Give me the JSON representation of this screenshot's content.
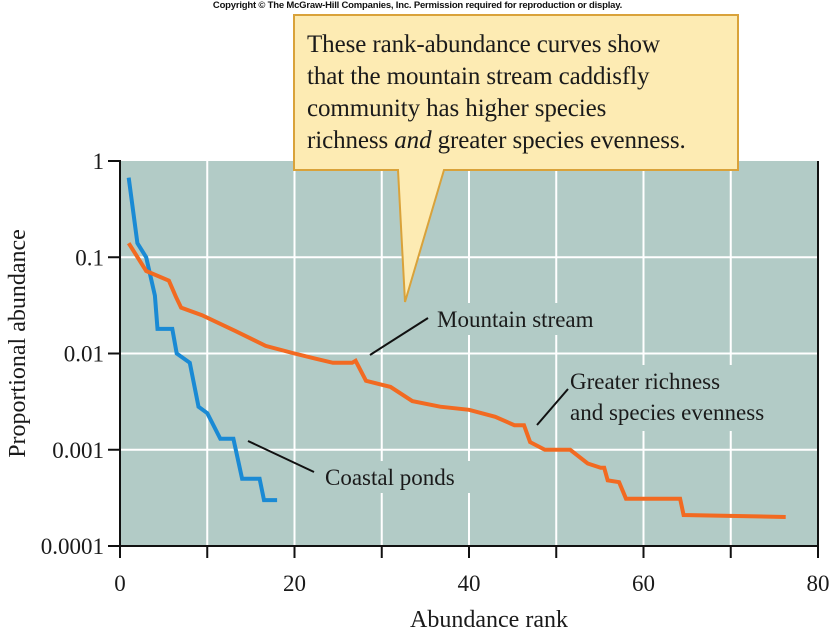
{
  "copyright": "Copyright © The McGraw-Hill Companies, Inc. Permission required for reproduction or display.",
  "callout": {
    "lines": [
      "These rank-abundance curves show",
      "that the mountain stream caddisfly",
      "community has higher species"
    ],
    "last_line_pre": "richness ",
    "last_line_em": "and",
    "last_line_post": " greater species evenness."
  },
  "colors": {
    "plot_background": "#b2cbc6",
    "grid": "#ffffff",
    "mountain_stream": "#f26a21",
    "coastal_ponds": "#1a8ad4",
    "callout_fill": "#fdebb3",
    "callout_border": "#d9a23a"
  },
  "chart_data": {
    "type": "line",
    "title": "",
    "xlabel": "Abundance rank",
    "ylabel": "Proportional abundance",
    "xlim": [
      0,
      80
    ],
    "ylim": [
      0.0001,
      1
    ],
    "yscale": "log",
    "grid": true,
    "x_ticks": [
      0,
      20,
      40,
      60,
      80
    ],
    "x_tick_labels": [
      "0",
      "20",
      "40",
      "60",
      "80"
    ],
    "x_minor_ticks": [
      10,
      30,
      50,
      70
    ],
    "y_ticks": [
      1,
      0.1,
      0.01,
      0.001,
      0.0001
    ],
    "y_tick_labels": [
      "1",
      "0.1",
      "0.01",
      "0.001",
      "0.0001"
    ],
    "series": [
      {
        "name": "Coastal ponds",
        "color_key": "coastal_ponds",
        "x": [
          1,
          2,
          3,
          4,
          4.3,
          6,
          6.5,
          8,
          9,
          10,
          11.5,
          13,
          14,
          16,
          16.5,
          18
        ],
        "y": [
          0.67,
          0.14,
          0.1,
          0.04,
          0.018,
          0.018,
          0.01,
          0.008,
          0.0028,
          0.0024,
          0.0013,
          0.0013,
          0.0005,
          0.0005,
          0.0003,
          0.0003
        ]
      },
      {
        "name": "Mountain stream",
        "color_key": "mountain_stream",
        "x": [
          1,
          3,
          5.6,
          6.4,
          7,
          9.4,
          13.3,
          16.7,
          20,
          22.3,
          24.4,
          26.6,
          27,
          28.2,
          31,
          33.5,
          36.7,
          40,
          43,
          45.2,
          46.3,
          47,
          48.7,
          51.6,
          53.6,
          55.1,
          55.5,
          55.9,
          57.2,
          58,
          64.2,
          64.6,
          76.3
        ],
        "y": [
          0.14,
          0.072,
          0.057,
          0.039,
          0.03,
          0.025,
          0.017,
          0.012,
          0.01,
          0.0089,
          0.008,
          0.008,
          0.0084,
          0.0052,
          0.0045,
          0.0032,
          0.0028,
          0.0026,
          0.0022,
          0.0018,
          0.0018,
          0.0012,
          0.001,
          0.001,
          0.00072,
          0.00065,
          0.00065,
          0.00048,
          0.00046,
          0.00031,
          0.00031,
          0.00021,
          0.0002
        ]
      }
    ],
    "annotations": [
      {
        "text_lines": [
          "Mountain stream"
        ],
        "points_to": "Mountain stream",
        "at_x": 28,
        "at_y": 0.0075
      },
      {
        "text_lines": [
          "Greater richness",
          "and species evenness"
        ],
        "points_to": "Mountain stream",
        "at_x": 48,
        "at_y": 0.0017
      },
      {
        "text_lines": [
          "Coastal ponds"
        ],
        "points_to": "Coastal ponds",
        "at_x": 14.5,
        "at_y": 0.0012
      }
    ]
  }
}
